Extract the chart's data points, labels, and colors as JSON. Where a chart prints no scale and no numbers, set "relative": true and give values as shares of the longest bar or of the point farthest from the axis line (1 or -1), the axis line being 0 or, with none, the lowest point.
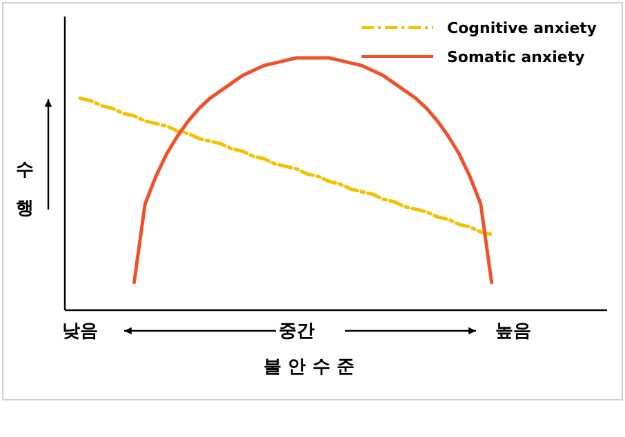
{
  "chart_data": {
    "type": "line",
    "relative": true,
    "xlabel": "불 안 수 준",
    "ylabel": "수 행",
    "legend": "top right",
    "categories": [
      "낮음",
      null,
      null,
      null,
      null,
      null,
      null,
      null,
      null,
      null,
      null,
      null,
      null,
      null,
      null,
      null,
      null,
      null,
      null,
      null,
      "중간",
      null,
      null,
      null,
      null,
      null,
      null,
      null,
      null,
      null,
      null,
      null,
      null,
      null,
      null,
      null,
      null,
      null,
      null,
      null,
      "높음"
    ],
    "series": [
      {
        "name": "Cognitive anxiety",
        "color": "#f2c200",
        "line_style": "dashed",
        "values": [
          0.84,
          0.83,
          0.81,
          0.8,
          0.78,
          0.77,
          0.75,
          0.74,
          0.73,
          0.71,
          0.7,
          0.68,
          0.67,
          0.66,
          0.64,
          0.63,
          0.61,
          0.6,
          0.58,
          0.57,
          0.56,
          0.54,
          0.53,
          0.51,
          0.5,
          0.48,
          0.47,
          0.46,
          0.44,
          0.43,
          0.41,
          0.4,
          0.39,
          0.37,
          0.36,
          0.34,
          0.33,
          0.31,
          0.3,
          null,
          null
        ]
      },
      {
        "name": "Somatic anxiety",
        "color": "#f0502a",
        "line_style": "solid",
        "values": [
          null,
          null,
          null,
          null,
          null,
          0.11,
          0.42,
          0.53,
          0.62,
          0.69,
          0.75,
          0.8,
          0.84,
          0.87,
          0.9,
          0.93,
          0.95,
          0.97,
          0.98,
          0.99,
          1,
          1,
          1,
          1,
          0.99,
          0.98,
          0.97,
          0.95,
          0.93,
          0.9,
          0.87,
          0.84,
          0.8,
          0.75,
          0.69,
          0.62,
          0.53,
          0.42,
          0.11,
          null,
          null
        ]
      }
    ]
  }
}
